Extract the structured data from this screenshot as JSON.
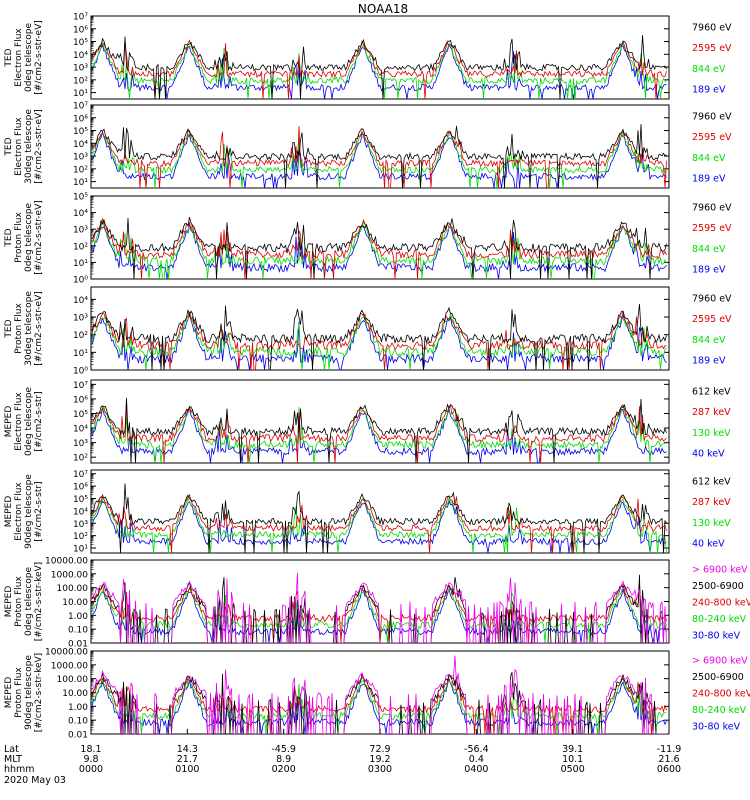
{
  "title": "NOAA18",
  "date_label": "2020 May 03",
  "footer": {
    "row_labels": [
      "Lat",
      "MLT",
      "hhmm"
    ],
    "ticks": [
      {
        "lat": "18.1",
        "mlt": "9.8",
        "hhmm": "0000"
      },
      {
        "lat": "14.3",
        "mlt": "21.7",
        "hhmm": "0100"
      },
      {
        "lat": "-45.9",
        "mlt": "8.9",
        "hhmm": "0200"
      },
      {
        "lat": "72.9",
        "mlt": "19.2",
        "hhmm": "0300"
      },
      {
        "lat": "-56.4",
        "mlt": "0.4",
        "hhmm": "0400"
      },
      {
        "lat": "39.1",
        "mlt": "10.1",
        "hhmm": "0500"
      },
      {
        "lat": "-11.9",
        "mlt": "21.6",
        "hhmm": "0600"
      }
    ]
  },
  "colors": {
    "black": "#000000",
    "red": "#e00000",
    "green": "#00dd00",
    "blue": "#0000ee",
    "magenta": "#ee00ee"
  },
  "chart_data": [
    {
      "type": "line",
      "ylabel": [
        "TED",
        "Electron Flux",
        "0deg telescope",
        "[#/cm2-s-str-eV]"
      ],
      "yticks": [
        "10¹",
        "10²",
        "10³",
        "10⁴",
        "10⁵",
        "10⁶",
        "10⁷"
      ],
      "ylim_log10": [
        0.5,
        7
      ],
      "series": [
        {
          "name": "7960 eV",
          "color": "#000000"
        },
        {
          "name": "2595 eV",
          "color": "#e00000"
        },
        {
          "name": "844 eV",
          "color": "#00dd00"
        },
        {
          "name": "189 eV",
          "color": "#0000ee"
        }
      ]
    },
    {
      "type": "line",
      "ylabel": [
        "TED",
        "Electron Flux",
        "30deg telescope",
        "[#/cm2-s-str-eV]"
      ],
      "yticks": [
        "10¹",
        "10²",
        "10³",
        "10⁴",
        "10⁵",
        "10⁶",
        "10⁷"
      ],
      "ylim_log10": [
        0.5,
        7
      ],
      "series": [
        {
          "name": "7960 eV",
          "color": "#000000"
        },
        {
          "name": "2595 eV",
          "color": "#e00000"
        },
        {
          "name": "844 eV",
          "color": "#00dd00"
        },
        {
          "name": "189 eV",
          "color": "#0000ee"
        }
      ]
    },
    {
      "type": "line",
      "ylabel": [
        "TED",
        "Proton Flux",
        "0deg telescope",
        "[#/cm2-s-str-eV]"
      ],
      "yticks": [
        "10⁰",
        "10¹",
        "10²",
        "10³",
        "10⁴",
        "10⁵"
      ],
      "ylim_log10": [
        0,
        5
      ],
      "series": [
        {
          "name": "7960 eV",
          "color": "#000000"
        },
        {
          "name": "2595 eV",
          "color": "#e00000"
        },
        {
          "name": "844 eV",
          "color": "#00dd00"
        },
        {
          "name": "189 eV",
          "color": "#0000ee"
        }
      ]
    },
    {
      "type": "line",
      "ylabel": [
        "TED",
        "Proton Flux",
        "30deg telescope",
        "[#/cm2-s-str-eV]"
      ],
      "yticks": [
        "10⁰",
        "10¹",
        "10²",
        "10³",
        "10⁴"
      ],
      "ylim_log10": [
        0,
        4.7
      ],
      "series": [
        {
          "name": "7960 eV",
          "color": "#000000"
        },
        {
          "name": "2595 eV",
          "color": "#e00000"
        },
        {
          "name": "844 eV",
          "color": "#00dd00"
        },
        {
          "name": "189 eV",
          "color": "#0000ee"
        }
      ]
    },
    {
      "type": "line",
      "ylabel": [
        "MEPED",
        "Electron Flux",
        "0deg telescope",
        "[#/cm2-s-str]"
      ],
      "yticks": [
        "10²",
        "10³",
        "10⁴",
        "10⁵",
        "10⁶",
        "10⁷"
      ],
      "ylim_log10": [
        1.6,
        7.3
      ],
      "series": [
        {
          "name": "612 keV",
          "color": "#000000"
        },
        {
          "name": "287 keV",
          "color": "#e00000"
        },
        {
          "name": "130 keV",
          "color": "#00dd00"
        },
        {
          "name": "40 keV",
          "color": "#0000ee"
        }
      ]
    },
    {
      "type": "line",
      "ylabel": [
        "MEPED",
        "Electron Flux",
        "90deg telescope",
        "[#/cm2-s-str]"
      ],
      "yticks": [
        "10¹",
        "10²",
        "10³",
        "10⁴",
        "10⁵",
        "10⁶",
        "10⁷"
      ],
      "ylim_log10": [
        0.6,
        7.3
      ],
      "series": [
        {
          "name": "612 keV",
          "color": "#000000"
        },
        {
          "name": "287 keV",
          "color": "#e00000"
        },
        {
          "name": "130 keV",
          "color": "#00dd00"
        },
        {
          "name": "40 keV",
          "color": "#0000ee"
        }
      ]
    },
    {
      "type": "line",
      "ylabel": [
        "MEPED",
        "Proton Flux",
        "0deg telescope",
        "[#/cm2-s-str-keV]"
      ],
      "yticks": [
        "0.01",
        "0.10",
        "1.00",
        "10.00",
        "100.00",
        "1000.00",
        "10000.00"
      ],
      "ylim_log10": [
        -2,
        4
      ],
      "series": [
        {
          "name": "> 6900 keV",
          "color": "#ee00ee"
        },
        {
          "name": "2500-6900",
          "color": "#000000"
        },
        {
          "name": "240-800 keV",
          "color": "#e00000"
        },
        {
          "name": "80-240 keV",
          "color": "#00dd00"
        },
        {
          "name": "30-80 keV",
          "color": "#0000ee"
        }
      ]
    },
    {
      "type": "line",
      "ylabel": [
        "MEPED",
        "Proton Flux",
        "90deg telescope",
        "[#/cm2-s-str-keV]"
      ],
      "yticks": [
        "0.01",
        "0.10",
        "1.00",
        "10.00",
        "100.00",
        "1000.00",
        "10000.00"
      ],
      "ylim_log10": [
        -2,
        4
      ],
      "series": [
        {
          "name": "> 6900 keV",
          "color": "#ee00ee"
        },
        {
          "name": "2500-6900",
          "color": "#000000"
        },
        {
          "name": "240-800 keV",
          "color": "#e00000"
        },
        {
          "name": "80-240 keV",
          "color": "#00dd00"
        },
        {
          "name": "30-80 keV",
          "color": "#0000ee"
        }
      ]
    }
  ]
}
